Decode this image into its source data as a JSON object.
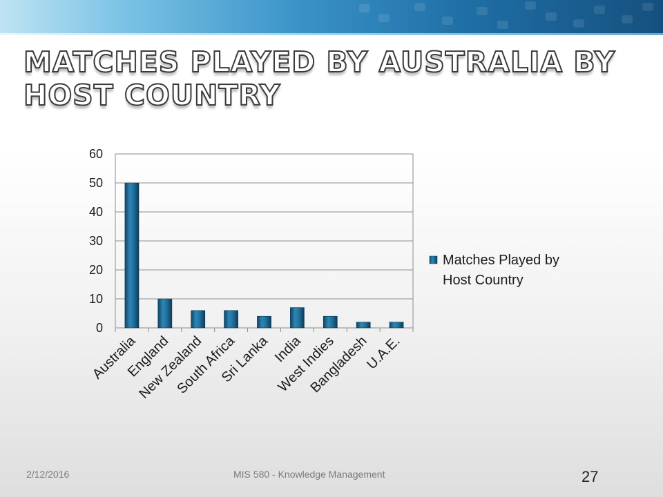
{
  "slide": {
    "title": "Matches Played by Australia by Host Country",
    "footer_date": "2/12/2016",
    "footer_course": "MIS 580 - Knowledge Management",
    "page_number": "27"
  },
  "chart_data": {
    "type": "bar",
    "categories": [
      "Australia",
      "England",
      "New Zealand",
      "South Africa",
      "Sri Lanka",
      "India",
      "West Indies",
      "Bangladesh",
      "U.A.E."
    ],
    "series": [
      {
        "name": "Matches Played by Host Country",
        "values": [
          50,
          10,
          6,
          6,
          4,
          7,
          4,
          2,
          2
        ]
      }
    ],
    "yticks": [
      "0",
      "10",
      "20",
      "30",
      "40",
      "50",
      "60"
    ],
    "ylim": [
      0,
      60
    ],
    "xlabel": "",
    "ylabel": "",
    "grid": true,
    "legend_position": "right",
    "legend_lines": [
      "Matches Played by",
      "Host Country"
    ],
    "bar_color": "#1f6e99"
  }
}
